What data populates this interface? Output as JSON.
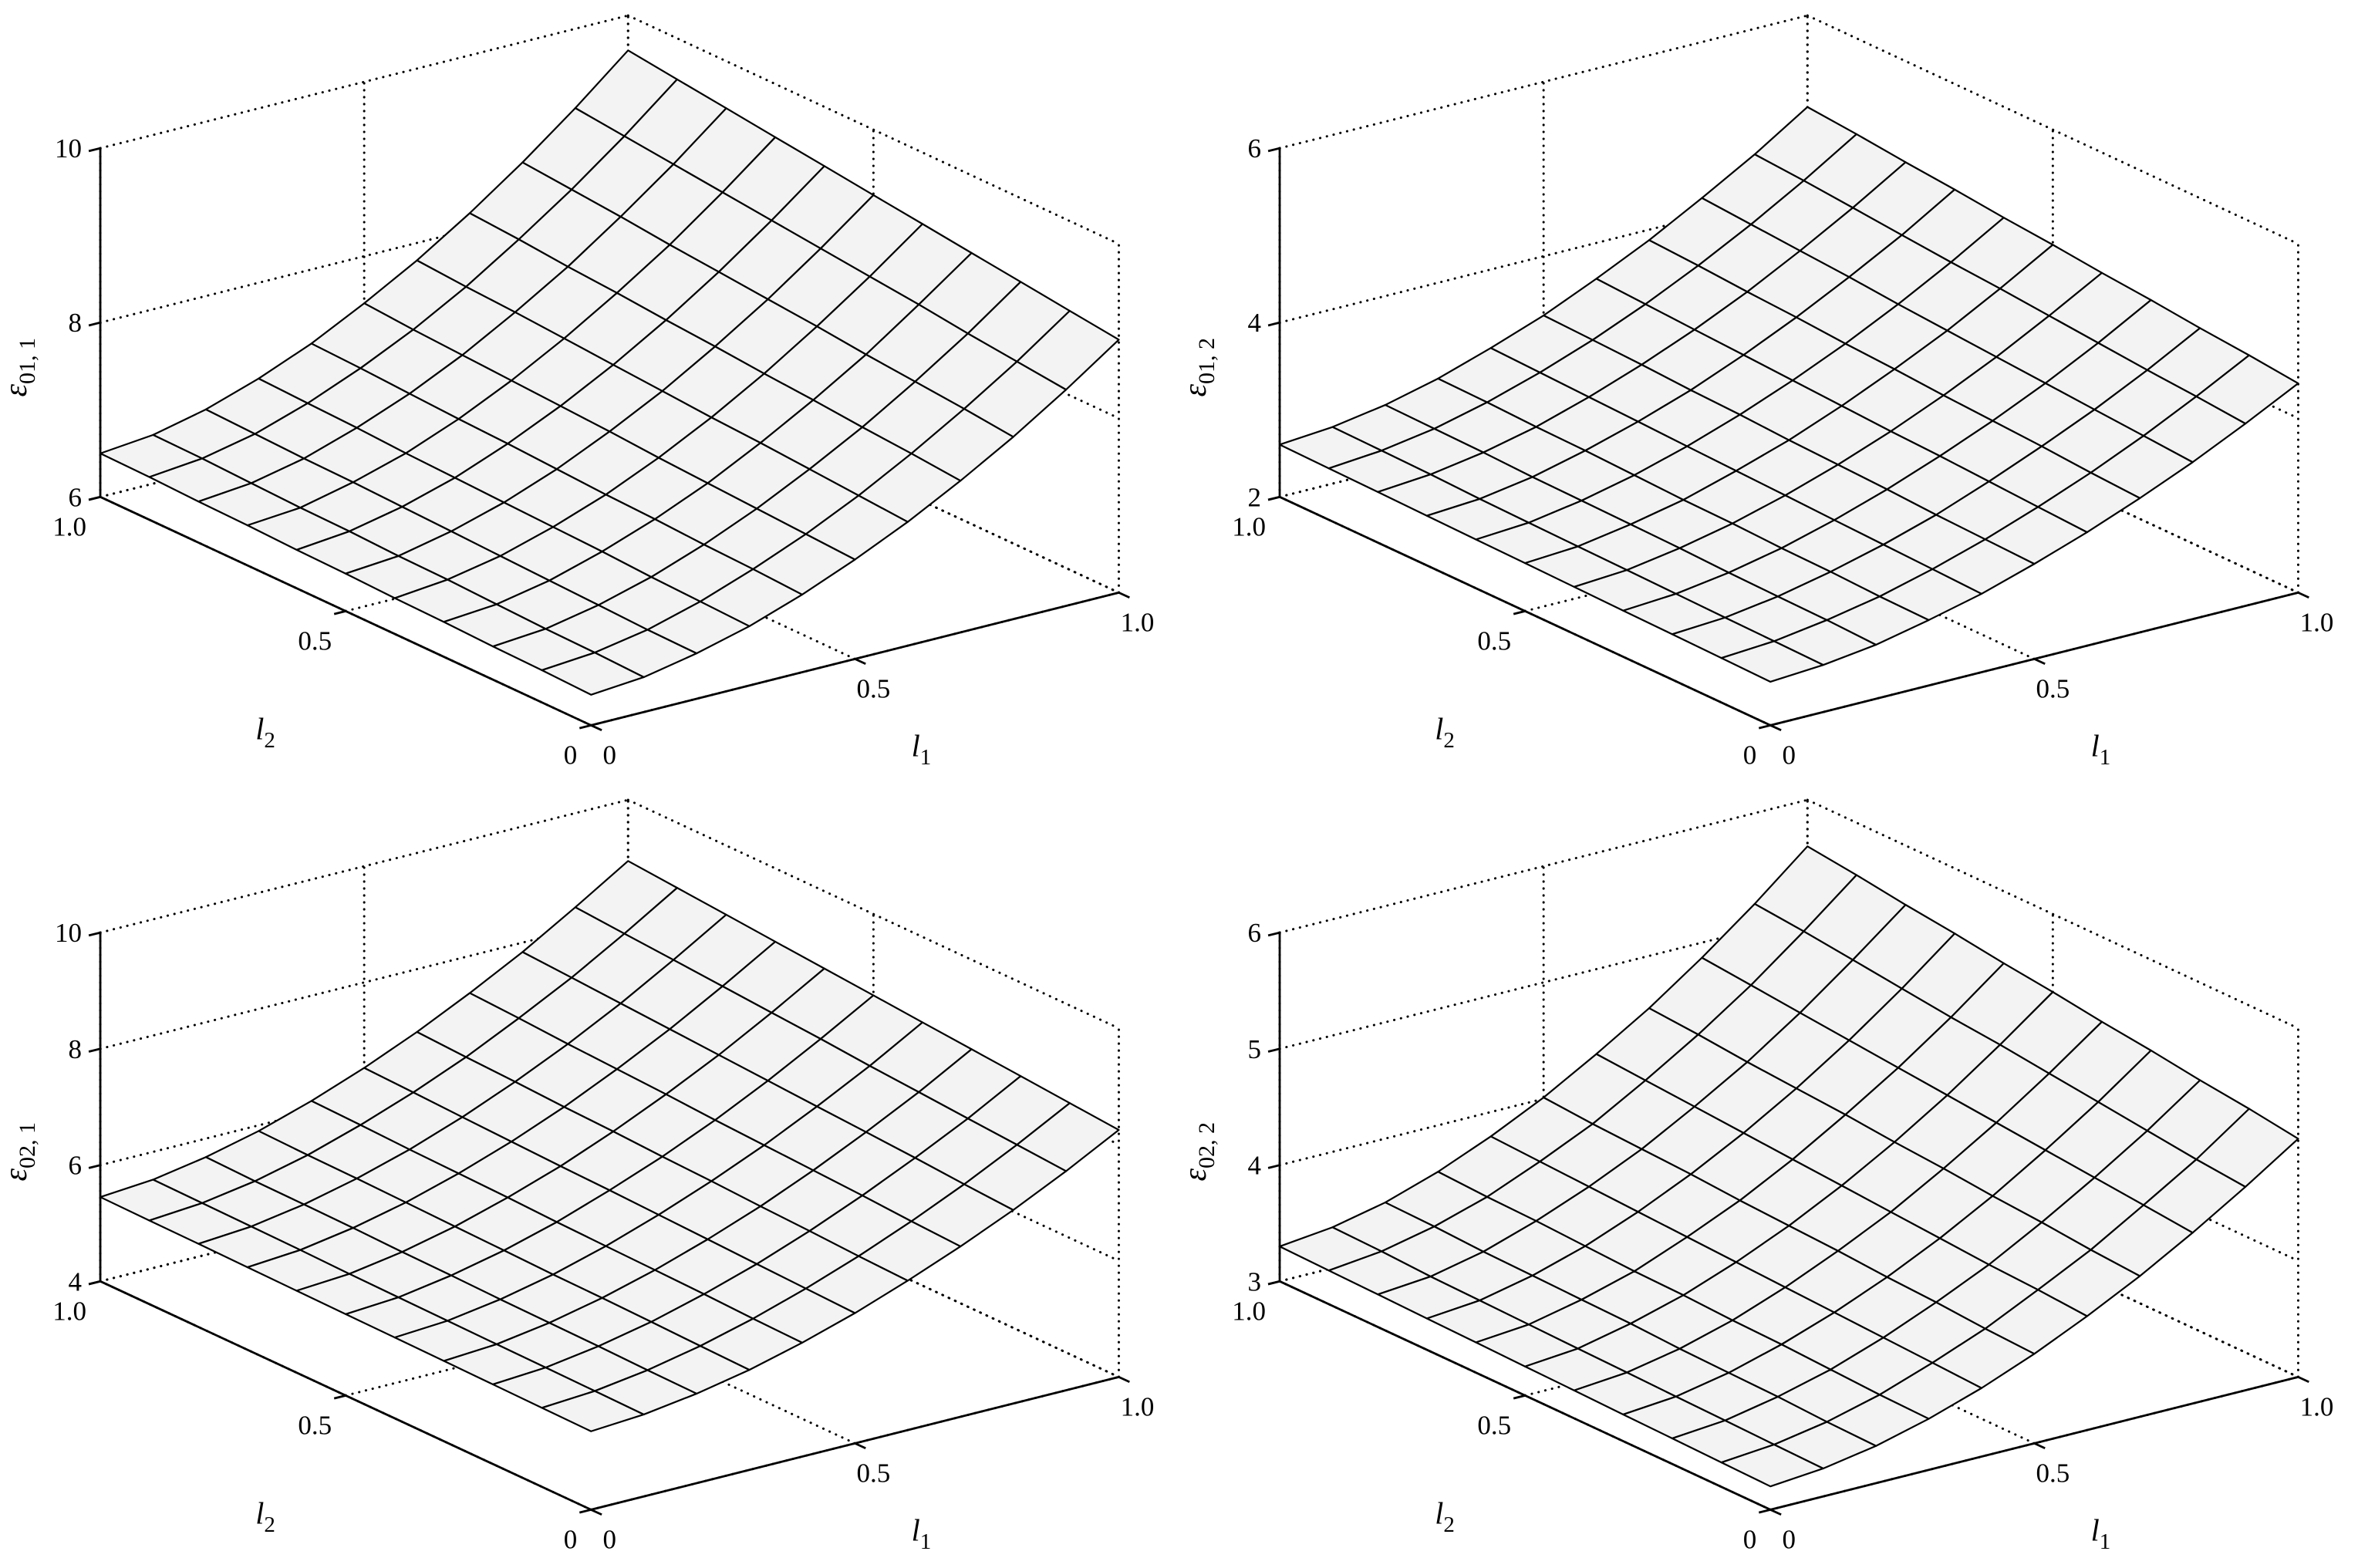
{
  "figure": {
    "rows": 2,
    "cols": 2,
    "background": "#ffffff"
  },
  "colors": {
    "line": "#000000",
    "grid": "#000000",
    "surface_fill": "#f3f3f3"
  },
  "chart_data": [
    {
      "type": "surface",
      "title": "",
      "zlabel": {
        "base": "ε",
        "sub": "01, 1"
      },
      "xlabel": {
        "base": "l",
        "sub": "1"
      },
      "ylabel": {
        "base": "l",
        "sub": "2"
      },
      "x": [
        0,
        0.1,
        0.2,
        0.3,
        0.4,
        0.5,
        0.6,
        0.7,
        0.8,
        0.9,
        1.0
      ],
      "y": [
        0,
        0.1,
        0.2,
        0.3,
        0.4,
        0.5,
        0.6,
        0.7,
        0.8,
        0.9,
        1.0
      ],
      "xticks": [
        0,
        0.5,
        1.0
      ],
      "xtick_labels": [
        "0",
        "0.5",
        "1.0"
      ],
      "yticks": [
        0,
        0.5,
        1.0
      ],
      "ytick_labels": [
        "0",
        "0.5",
        "1.0"
      ],
      "zlim": [
        6,
        10
      ],
      "zticks": [
        6,
        8,
        10
      ],
      "ztick_labels": [
        "6",
        "8",
        "10"
      ],
      "grid": "dotted",
      "legend": "none",
      "z": [
        [
          6.35,
          6.4,
          6.52,
          6.68,
          6.89,
          7.14,
          7.42,
          7.74,
          8.09,
          8.48,
          8.9
        ],
        [
          6.37,
          6.42,
          6.53,
          6.7,
          6.92,
          7.17,
          7.46,
          7.79,
          8.15,
          8.54,
          8.97
        ],
        [
          6.38,
          6.43,
          6.55,
          6.72,
          6.94,
          7.2,
          7.5,
          7.83,
          8.2,
          8.6,
          9.04
        ],
        [
          6.4,
          6.45,
          6.57,
          6.75,
          6.97,
          7.23,
          7.54,
          7.88,
          8.25,
          8.67,
          9.11
        ],
        [
          6.41,
          6.47,
          6.59,
          6.77,
          6.99,
          7.26,
          7.57,
          7.92,
          8.31,
          8.73,
          9.18
        ],
        [
          6.43,
          6.48,
          6.61,
          6.79,
          7.02,
          7.3,
          7.61,
          7.97,
          8.36,
          8.79,
          9.25
        ],
        [
          6.44,
          6.5,
          6.63,
          6.81,
          7.05,
          7.33,
          7.65,
          8.01,
          8.41,
          8.85,
          9.32
        ],
        [
          6.46,
          6.51,
          6.65,
          6.83,
          7.07,
          7.36,
          7.69,
          8.06,
          8.46,
          8.91,
          9.39
        ],
        [
          6.47,
          6.53,
          6.66,
          6.86,
          7.1,
          7.39,
          7.73,
          8.1,
          8.52,
          8.97,
          9.46
        ],
        [
          6.49,
          6.55,
          6.68,
          6.88,
          7.13,
          7.42,
          7.76,
          8.15,
          8.57,
          9.03,
          9.53
        ],
        [
          6.5,
          6.56,
          6.7,
          6.9,
          7.15,
          7.46,
          7.8,
          8.19,
          8.62,
          9.09,
          9.6
        ]
      ]
    },
    {
      "type": "surface",
      "title": "",
      "zlabel": {
        "base": "ε",
        "sub": "01, 2"
      },
      "xlabel": {
        "base": "l",
        "sub": "1"
      },
      "ylabel": {
        "base": "l",
        "sub": "2"
      },
      "x": [
        0,
        0.1,
        0.2,
        0.3,
        0.4,
        0.5,
        0.6,
        0.7,
        0.8,
        0.9,
        1.0
      ],
      "y": [
        0,
        0.1,
        0.2,
        0.3,
        0.4,
        0.5,
        0.6,
        0.7,
        0.8,
        0.9,
        1.0
      ],
      "xticks": [
        0,
        0.5,
        1.0
      ],
      "xtick_labels": [
        "0",
        "0.5",
        "1.0"
      ],
      "yticks": [
        0,
        0.5,
        1.0
      ],
      "ytick_labels": [
        "0",
        "0.5",
        "1.0"
      ],
      "zlim": [
        2,
        6
      ],
      "zticks": [
        2,
        4,
        6
      ],
      "ztick_labels": [
        "2",
        "4",
        "6"
      ],
      "grid": "dotted",
      "legend": "none",
      "z": [
        [
          2.5,
          2.54,
          2.62,
          2.75,
          2.9,
          3.09,
          3.3,
          3.54,
          3.8,
          4.09,
          4.4
        ],
        [
          2.51,
          2.55,
          2.64,
          2.76,
          2.92,
          3.11,
          3.33,
          3.57,
          3.84,
          4.14,
          4.46
        ],
        [
          2.52,
          2.56,
          2.65,
          2.78,
          2.94,
          3.13,
          3.36,
          3.61,
          3.88,
          4.18,
          4.51
        ],
        [
          2.53,
          2.57,
          2.66,
          2.79,
          2.96,
          3.16,
          3.39,
          3.64,
          3.92,
          4.23,
          4.57
        ],
        [
          2.54,
          2.58,
          2.68,
          2.81,
          2.98,
          3.18,
          3.41,
          3.67,
          3.96,
          4.28,
          4.62
        ],
        [
          2.55,
          2.59,
          2.69,
          2.82,
          3.0,
          3.2,
          3.44,
          3.71,
          4.0,
          4.33,
          4.68
        ],
        [
          2.56,
          2.6,
          2.7,
          2.84,
          3.02,
          3.23,
          3.47,
          3.74,
          4.04,
          4.37,
          4.73
        ],
        [
          2.57,
          2.61,
          2.71,
          2.86,
          3.04,
          3.25,
          3.5,
          3.78,
          4.09,
          4.42,
          4.79
        ],
        [
          2.58,
          2.63,
          2.73,
          2.87,
          3.06,
          3.28,
          3.53,
          3.81,
          4.13,
          4.47,
          4.84
        ],
        [
          2.59,
          2.64,
          2.74,
          2.89,
          3.08,
          3.3,
          3.56,
          3.85,
          4.17,
          4.52,
          4.9
        ],
        [
          2.6,
          2.65,
          2.75,
          2.9,
          3.1,
          3.32,
          3.59,
          3.88,
          4.21,
          4.56,
          4.95
        ]
      ]
    },
    {
      "type": "surface",
      "title": "",
      "zlabel": {
        "base": "ε",
        "sub": "02, 1"
      },
      "xlabel": {
        "base": "l",
        "sub": "1"
      },
      "ylabel": {
        "base": "l",
        "sub": "2"
      },
      "x": [
        0,
        0.1,
        0.2,
        0.3,
        0.4,
        0.5,
        0.6,
        0.7,
        0.8,
        0.9,
        1.0
      ],
      "y": [
        0,
        0.1,
        0.2,
        0.3,
        0.4,
        0.5,
        0.6,
        0.7,
        0.8,
        0.9,
        1.0
      ],
      "xticks": [
        0,
        0.5,
        1.0
      ],
      "xtick_labels": [
        "0",
        "0.5",
        "1.0"
      ],
      "yticks": [
        0,
        0.5,
        1.0
      ],
      "ytick_labels": [
        "0",
        "0.5",
        "1.0"
      ],
      "zlim": [
        4,
        10
      ],
      "zticks": [
        4,
        6,
        8,
        10
      ],
      "ztick_labels": [
        "4",
        "6",
        "8",
        "10"
      ],
      "grid": "dotted",
      "legend": "none",
      "z": [
        [
          5.35,
          5.41,
          5.54,
          5.72,
          5.96,
          6.24,
          6.57,
          6.93,
          7.33,
          7.77,
          8.25
        ],
        [
          5.36,
          5.42,
          5.55,
          5.74,
          5.98,
          6.27,
          6.6,
          6.97,
          7.38,
          7.83,
          8.32
        ],
        [
          5.37,
          5.43,
          5.57,
          5.76,
          6.01,
          6.3,
          6.64,
          7.02,
          7.44,
          7.89,
          8.39
        ],
        [
          5.38,
          5.44,
          5.58,
          5.78,
          6.03,
          6.33,
          6.67,
          7.06,
          7.49,
          7.95,
          8.46
        ],
        [
          5.39,
          5.45,
          5.59,
          5.79,
          6.05,
          6.36,
          6.71,
          7.1,
          7.54,
          8.01,
          8.53
        ],
        [
          5.4,
          5.46,
          5.61,
          5.81,
          6.07,
          6.39,
          6.74,
          7.14,
          7.59,
          8.08,
          8.6
        ],
        [
          5.41,
          5.47,
          5.62,
          5.83,
          6.1,
          6.41,
          6.78,
          7.19,
          7.64,
          8.14,
          8.67
        ],
        [
          5.42,
          5.49,
          5.64,
          5.85,
          6.12,
          6.44,
          6.81,
          7.23,
          7.69,
          8.2,
          8.74
        ],
        [
          5.43,
          5.5,
          5.65,
          5.87,
          6.14,
          6.47,
          6.85,
          7.27,
          7.74,
          8.26,
          8.81
        ],
        [
          5.44,
          5.51,
          5.66,
          5.88,
          6.17,
          6.5,
          6.88,
          7.32,
          7.79,
          8.32,
          8.88
        ],
        [
          5.45,
          5.52,
          5.68,
          5.9,
          6.19,
          6.53,
          6.92,
          7.36,
          7.84,
          8.38,
          8.95
        ]
      ]
    },
    {
      "type": "surface",
      "title": "",
      "zlabel": {
        "base": "ε",
        "sub": "02, 2"
      },
      "xlabel": {
        "base": "l",
        "sub": "1"
      },
      "ylabel": {
        "base": "l",
        "sub": "2"
      },
      "x": [
        0,
        0.1,
        0.2,
        0.3,
        0.4,
        0.5,
        0.6,
        0.7,
        0.8,
        0.9,
        1.0
      ],
      "y": [
        0,
        0.1,
        0.2,
        0.3,
        0.4,
        0.5,
        0.6,
        0.7,
        0.8,
        0.9,
        1.0
      ],
      "xticks": [
        0,
        0.5,
        1.0
      ],
      "xtick_labels": [
        "0",
        "0.5",
        "1.0"
      ],
      "yticks": [
        0,
        0.5,
        1.0
      ],
      "ytick_labels": [
        "0",
        "0.5",
        "1.0"
      ],
      "zlim": [
        3,
        6
      ],
      "zticks": [
        3,
        4,
        5,
        6
      ],
      "ztick_labels": [
        "3",
        "4",
        "5",
        "6"
      ],
      "grid": "dotted",
      "legend": "none",
      "z": [
        [
          3.2,
          3.24,
          3.32,
          3.44,
          3.59,
          3.77,
          3.98,
          4.21,
          4.47,
          4.75,
          5.05
        ],
        [
          3.21,
          3.25,
          3.33,
          3.45,
          3.61,
          3.79,
          4.01,
          4.24,
          4.51,
          4.79,
          5.11
        ],
        [
          3.22,
          3.26,
          3.35,
          3.47,
          3.63,
          3.82,
          4.03,
          4.28,
          4.55,
          4.84,
          5.16
        ],
        [
          3.23,
          3.27,
          3.36,
          3.49,
          3.65,
          3.84,
          4.06,
          4.31,
          4.59,
          4.89,
          5.22
        ],
        [
          3.24,
          3.28,
          3.37,
          3.5,
          3.67,
          3.87,
          4.09,
          4.35,
          4.63,
          4.94,
          5.27
        ],
        [
          3.25,
          3.29,
          3.39,
          3.52,
          3.69,
          3.89,
          4.12,
          4.38,
          4.67,
          4.99,
          5.33
        ],
        [
          3.26,
          3.3,
          3.4,
          3.53,
          3.71,
          3.91,
          4.15,
          4.42,
          4.71,
          5.03,
          5.38
        ],
        [
          3.27,
          3.31,
          3.41,
          3.55,
          3.73,
          3.94,
          4.18,
          4.45,
          4.75,
          5.08,
          5.44
        ],
        [
          3.28,
          3.32,
          3.42,
          3.57,
          3.75,
          3.96,
          4.21,
          4.48,
          4.79,
          5.13,
          5.49
        ],
        [
          3.29,
          3.34,
          3.44,
          3.58,
          3.77,
          3.98,
          4.24,
          4.52,
          4.83,
          5.18,
          5.55
        ],
        [
          3.3,
          3.35,
          3.45,
          3.6,
          3.79,
          4.01,
          4.27,
          4.55,
          4.87,
          5.22,
          5.6
        ]
      ]
    }
  ]
}
